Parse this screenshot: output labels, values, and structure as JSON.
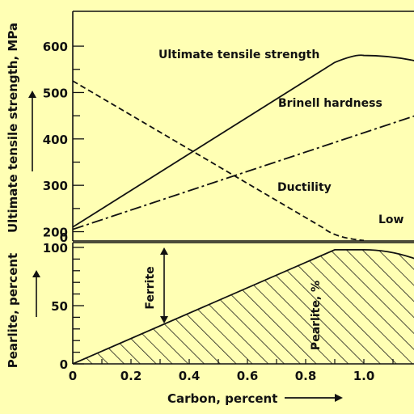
{
  "colors": {
    "background": "#FFFFB4",
    "ink": "#111111"
  },
  "chart_data": [
    {
      "type": "line",
      "panel": "upper",
      "title": "",
      "xlabel": "",
      "ylabel": "Ultimate tensile strength, MPa",
      "ylim": [
        180,
        640
      ],
      "xlim": [
        0,
        1.2
      ],
      "yticks": [
        "200",
        "300",
        "400",
        "500",
        "600"
      ],
      "bottom_label": "0",
      "series": [
        {
          "name": "Ultimate tensile strength",
          "style": "solid",
          "x": [
            0,
            0.9,
            1.0,
            1.2
          ],
          "y": [
            210,
            565,
            580,
            565
          ]
        },
        {
          "name": "Brinell hardness",
          "style": "dash-dot",
          "x": [
            0,
            1.2
          ],
          "y": [
            205,
            455
          ]
        },
        {
          "name": "Ductility",
          "style": "dashed",
          "x": [
            0,
            0.9,
            1.0
          ],
          "y": [
            525,
            187,
            181
          ]
        }
      ],
      "annotations": [
        "Low"
      ]
    },
    {
      "type": "area",
      "panel": "lower",
      "title": "",
      "xlabel": "Carbon, percent",
      "ylabel": "Pearlite, percent",
      "xlim": [
        0,
        1.2
      ],
      "ylim": [
        0,
        100
      ],
      "xticks": [
        "0",
        "0.2",
        "0.4",
        "0.6",
        "0.8",
        "1.0"
      ],
      "yticks": [
        "0",
        "50",
        "100"
      ],
      "series": [
        {
          "name": "Pearlite, %",
          "style": "hatched",
          "x": [
            0,
            0.9,
            1.0,
            1.2
          ],
          "y": [
            0,
            98,
            98,
            88
          ]
        }
      ],
      "annotations": [
        "Ferrite",
        "Pearlite, %"
      ]
    }
  ]
}
